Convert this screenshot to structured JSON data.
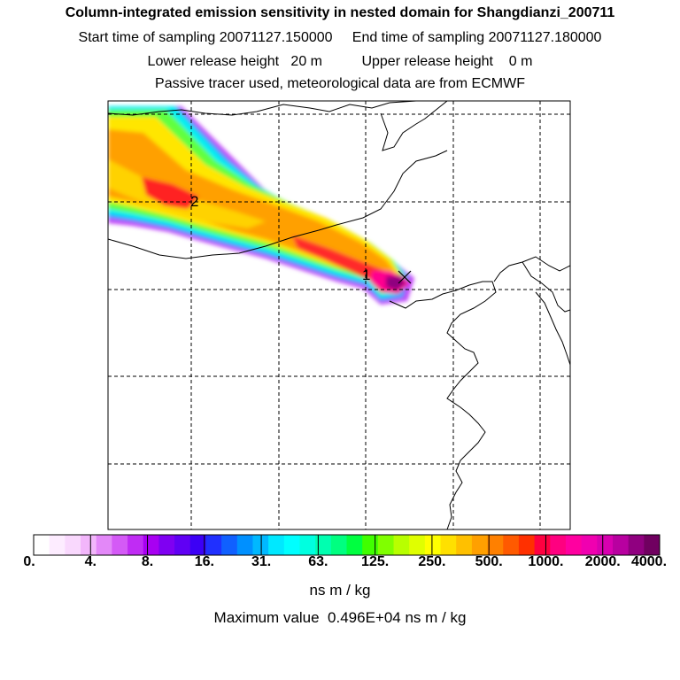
{
  "header": {
    "title": "Column-integrated emission sensitivity in nested domain for Shangdianzi_200711",
    "sampling": "Start time of sampling 20071127.150000     End time of sampling 20071127.180000",
    "release": "Lower release height   20 m          Upper release height    0 m",
    "tracer": "Passive tracer used, meteorological data are from ECMWF"
  },
  "map": {
    "markers": [
      {
        "label": "1"
      },
      {
        "label": "2"
      }
    ],
    "station_marker": "x-cross-icon"
  },
  "colorbar": {
    "labels": [
      "0.",
      "4.",
      "8.",
      "16.",
      "31.",
      "63.",
      "125.",
      "250.",
      "500.",
      "1000.",
      "2000.",
      "4000."
    ],
    "colors": [
      "#ffffff",
      "#fdecff",
      "#f9d8fd",
      "#f2b6fb",
      "#e388f8",
      "#d45af6",
      "#c02cf4",
      "#a800f2",
      "#7f00f2",
      "#6000f4",
      "#3c00f6",
      "#2030ff",
      "#1060ff",
      "#0090ff",
      "#00b8ff",
      "#00e8ff",
      "#00ffff",
      "#00ffe0",
      "#00ffb0",
      "#00ff80",
      "#00ff40",
      "#40ff00",
      "#80ff00",
      "#b8ff00",
      "#e0ff00",
      "#ffff00",
      "#ffe000",
      "#ffc000",
      "#ffa000",
      "#ff8000",
      "#ff5a00",
      "#ff3000",
      "#ff0040",
      "#ff0080",
      "#ff00a0",
      "#f000b0",
      "#d800b0",
      "#b800a0",
      "#900080",
      "#700060"
    ],
    "units": "ns m / kg",
    "max_value": "Maximum value  0.496E+04 ns m / kg"
  }
}
